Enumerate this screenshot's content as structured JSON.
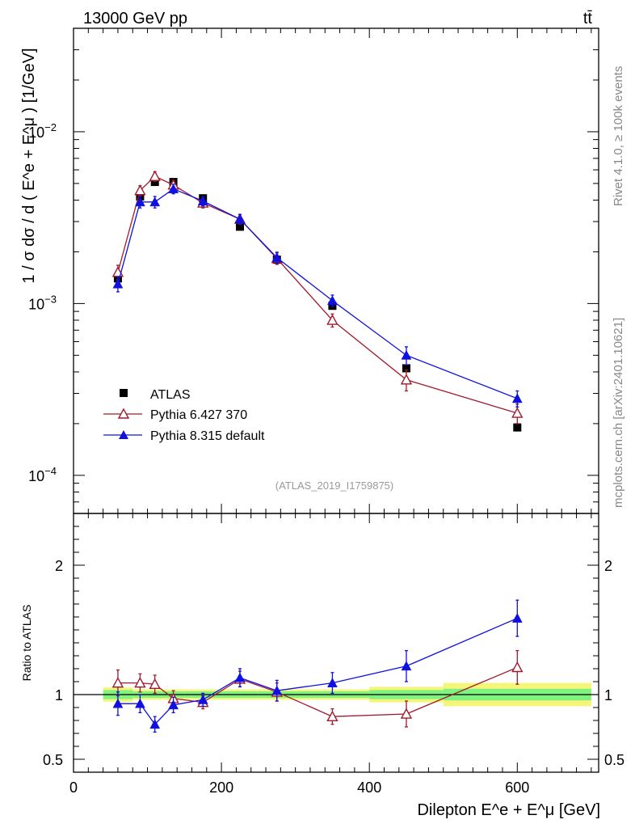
{
  "header": {
    "energy_label": "13000 GeV pp",
    "process_label": "tt̄"
  },
  "side_labels": {
    "rivet": "Rivet 4.1.0, ≥ 100k events",
    "mcplots": "mcplots.cern.ch [arXiv:2401.10621]"
  },
  "chart_data": [
    {
      "type": "scatter",
      "panel": "main",
      "y_scale": "log",
      "ylabel": "1 / σ dσ / d ( E^e + E^μ ) [1/GeV]",
      "xlim": [
        0,
        710
      ],
      "ylim": [
        6e-05,
        0.04
      ],
      "y_tick_labels": [
        "10^-4",
        "10^-3",
        "10^-2"
      ],
      "analysis_label": "(ATLAS_2019_I1759875)",
      "legend_position": "bottom-left",
      "x": [
        60,
        90,
        110,
        135,
        175,
        225,
        275,
        350,
        450,
        600
      ],
      "series": [
        {
          "name": "ATLAS",
          "color": "#000000",
          "marker": "square",
          "values": [
            0.0014,
            0.0042,
            0.0051,
            0.0051,
            0.0041,
            0.0028,
            0.0018,
            0.00097,
            0.00042,
            0.00019
          ],
          "errors": [
            5e-05,
            0.0001,
            0.00012,
            0.00012,
            0.0001,
            7e-05,
            5e-05,
            3e-05,
            1.5e-05,
            8e-06
          ]
        },
        {
          "name": "Pythia 6.427 370",
          "color": "#a0192d",
          "marker": "open-triangle",
          "values": [
            0.00152,
            0.00455,
            0.0055,
            0.0049,
            0.00385,
            0.0031,
            0.00183,
            0.0008,
            0.00036,
            0.00023
          ],
          "errors": [
            0.00015,
            0.0003,
            0.00035,
            0.0003,
            0.00025,
            0.0002,
            0.00014,
            7e-05,
            5e-05,
            3e-05
          ]
        },
        {
          "name": "Pythia 8.315 default",
          "color": "#1010e0",
          "marker": "filled-triangle",
          "values": [
            0.0013,
            0.0039,
            0.0039,
            0.00465,
            0.00395,
            0.0031,
            0.00185,
            0.00104,
            0.0005,
            0.00028
          ],
          "errors": [
            0.00013,
            0.0003,
            0.0003,
            0.0003,
            0.00025,
            0.0002,
            0.00014,
            8e-05,
            6e-05,
            3e-05
          ]
        }
      ]
    },
    {
      "type": "scatter",
      "panel": "ratio",
      "ylabel": "Ratio to ATLAS",
      "xlabel": "Dilepton E^e + E^μ [GeV]",
      "xlim": [
        0,
        710
      ],
      "ylim": [
        0.4,
        2.4
      ],
      "x_ticks": [
        0,
        200,
        400,
        600
      ],
      "y_ticks": [
        0.5,
        1,
        2
      ],
      "x": [
        60,
        90,
        110,
        135,
        175,
        225,
        275,
        350,
        450,
        600
      ],
      "uncertainty_bands": {
        "bins": [
          [
            40,
            80
          ],
          [
            80,
            100
          ],
          [
            100,
            120
          ],
          [
            120,
            150
          ],
          [
            150,
            200
          ],
          [
            200,
            250
          ],
          [
            250,
            300
          ],
          [
            300,
            400
          ],
          [
            400,
            500
          ],
          [
            500,
            700
          ]
        ],
        "inner_color": "#7ff27f",
        "outer_color": "#f5f57a",
        "inner": [
          0.035,
          0.025,
          0.025,
          0.025,
          0.025,
          0.025,
          0.025,
          0.025,
          0.035,
          0.045
        ],
        "outer": [
          0.055,
          0.04,
          0.04,
          0.04,
          0.04,
          0.04,
          0.04,
          0.04,
          0.06,
          0.09
        ]
      },
      "series": [
        {
          "name": "Pythia 6.427 370",
          "color": "#a0192d",
          "marker": "open-triangle",
          "values": [
            1.09,
            1.09,
            1.08,
            0.97,
            0.94,
            1.12,
            1.02,
            0.83,
            0.85,
            1.21
          ],
          "errors": [
            0.1,
            0.07,
            0.07,
            0.06,
            0.05,
            0.06,
            0.07,
            0.06,
            0.1,
            0.13
          ]
        },
        {
          "name": "Pythia 8.315 default",
          "color": "#1010e0",
          "marker": "filled-triangle",
          "values": [
            0.93,
            0.93,
            0.77,
            0.92,
            0.96,
            1.13,
            1.03,
            1.09,
            1.22,
            1.59
          ],
          "errors": [
            0.09,
            0.07,
            0.06,
            0.06,
            0.05,
            0.07,
            0.08,
            0.08,
            0.12,
            0.14
          ]
        }
      ]
    }
  ]
}
